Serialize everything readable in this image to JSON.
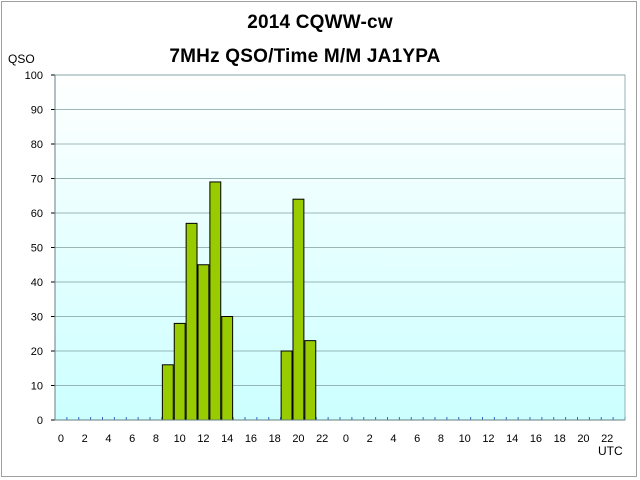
{
  "chart_data": {
    "type": "bar",
    "title": "2014  CQWW-cw",
    "subtitle": "7MHz QSO/Time  M/M JA1YPA",
    "ylabel": "QSO",
    "xlabel": "UTC",
    "ylim": [
      0,
      100
    ],
    "yticks": [
      0,
      10,
      20,
      30,
      40,
      50,
      60,
      70,
      80,
      90,
      100
    ],
    "xtick_labels": [
      "0",
      "2",
      "4",
      "6",
      "8",
      "10",
      "12",
      "14",
      "16",
      "18",
      "20",
      "22",
      "0",
      "2",
      "4",
      "6",
      "8",
      "10",
      "12",
      "14",
      "16",
      "18",
      "20",
      "22"
    ],
    "grid": true,
    "values": [
      0,
      0,
      0,
      0,
      0,
      0,
      0,
      0,
      0,
      16,
      28,
      57,
      45,
      69,
      30,
      0,
      0,
      0,
      0,
      20,
      64,
      23,
      0,
      0,
      0,
      0,
      0,
      0,
      0,
      0,
      0,
      0,
      0,
      0,
      0,
      0,
      0,
      0,
      0,
      0,
      0,
      0,
      0,
      0,
      0,
      0,
      0,
      0
    ],
    "colors": {
      "bar_fill": "#99cc00",
      "bar_edge": "#000000",
      "plot_top": "#ffffff",
      "plot_bottom": "#ccffff",
      "grid": "#7f9fa0"
    }
  }
}
